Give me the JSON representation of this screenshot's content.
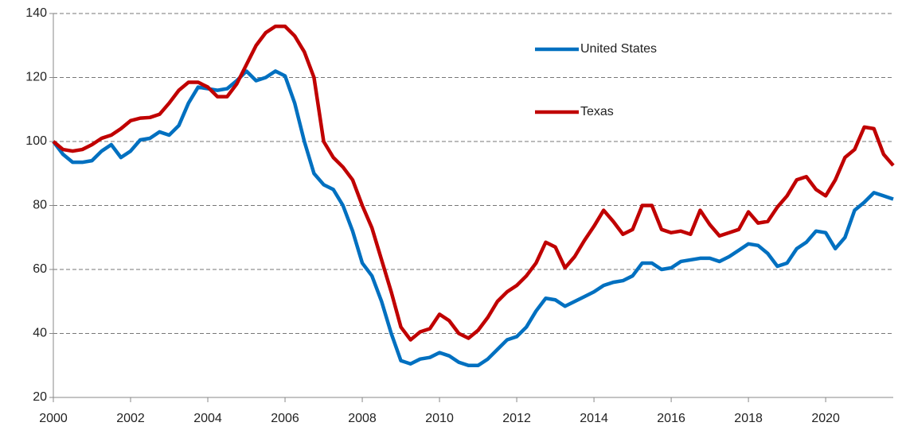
{
  "chart_data": {
    "type": "line",
    "x": [
      2000,
      2000.25,
      2000.5,
      2000.75,
      2001,
      2001.25,
      2001.5,
      2001.75,
      2002,
      2002.25,
      2002.5,
      2002.75,
      2003,
      2003.25,
      2003.5,
      2003.75,
      2004,
      2004.25,
      2004.5,
      2004.75,
      2005,
      2005.25,
      2005.5,
      2005.75,
      2006,
      2006.25,
      2006.5,
      2006.75,
      2007,
      2007.25,
      2007.5,
      2007.75,
      2008,
      2008.25,
      2008.5,
      2008.75,
      2009,
      2009.25,
      2009.5,
      2009.75,
      2010,
      2010.25,
      2010.5,
      2010.75,
      2011,
      2011.25,
      2011.5,
      2011.75,
      2012,
      2012.25,
      2012.5,
      2012.75,
      2013,
      2013.25,
      2013.5,
      2013.75,
      2014,
      2014.25,
      2014.5,
      2014.75,
      2015,
      2015.25,
      2015.5,
      2015.75,
      2016,
      2016.25,
      2016.5,
      2016.75,
      2017,
      2017.25,
      2017.5,
      2017.75,
      2018,
      2018.25,
      2018.5,
      2018.75,
      2019,
      2019.25,
      2019.5,
      2019.75,
      2020,
      2020.25,
      2020.5,
      2020.75,
      2021,
      2021.25,
      2021.5,
      2021.75
    ],
    "series": [
      {
        "name": "United States",
        "color": "#0070c0",
        "values": [
          100,
          96,
          93.5,
          93.5,
          94,
          97,
          99,
          95,
          97,
          100.5,
          101,
          103,
          102,
          105,
          112,
          117,
          116.5,
          116,
          116.5,
          119,
          122,
          119,
          120,
          122,
          120.5,
          112,
          100,
          90,
          86.5,
          85,
          80,
          72,
          62,
          58,
          50,
          40,
          31.5,
          30.5,
          32,
          32.5,
          34,
          33,
          31,
          30,
          30,
          32,
          35,
          38,
          39,
          42,
          47,
          51,
          50.5,
          48.5,
          50,
          51.5,
          53,
          55,
          56,
          56.5,
          58,
          62,
          62,
          60,
          60.5,
          62.5,
          63,
          63.5,
          63.5,
          62.5,
          64,
          66,
          68,
          67.5,
          65,
          61,
          62,
          66.5,
          68.5,
          72,
          71.5,
          66.5,
          70,
          78.5,
          81,
          84,
          83,
          82
        ]
      },
      {
        "name": "Texas",
        "color": "#c00000",
        "values": [
          100,
          97.5,
          97,
          97.5,
          99,
          101,
          102,
          104,
          106.5,
          107.3,
          107.5,
          108.5,
          112,
          116,
          118.5,
          118.5,
          117,
          114,
          114,
          118,
          124,
          130,
          134,
          136,
          136,
          133,
          128,
          120,
          100,
          95,
          92,
          88,
          80,
          73,
          63,
          53,
          42,
          38,
          40.5,
          41.5,
          46,
          44,
          40,
          38.5,
          41,
          45,
          50,
          53,
          55,
          58,
          62,
          68.5,
          67,
          60.5,
          64,
          69,
          73.5,
          78.5,
          75,
          71,
          72.5,
          80,
          80,
          72.5,
          71.5,
          72,
          71,
          78.5,
          74,
          70.5,
          71.5,
          72.5,
          78,
          74.5,
          75,
          79.5,
          83,
          88,
          89,
          85,
          83,
          88,
          95,
          97.5,
          104.5,
          104,
          96,
          92.5
        ]
      }
    ],
    "xlim": [
      2000,
      2021.75
    ],
    "xticks": [
      2000,
      2002,
      2004,
      2006,
      2008,
      2010,
      2012,
      2014,
      2016,
      2018,
      2020
    ],
    "ylim": [
      20,
      140
    ],
    "yticks": [
      20,
      40,
      60,
      80,
      100,
      120,
      140
    ],
    "grid": true,
    "legend": "upper center"
  }
}
